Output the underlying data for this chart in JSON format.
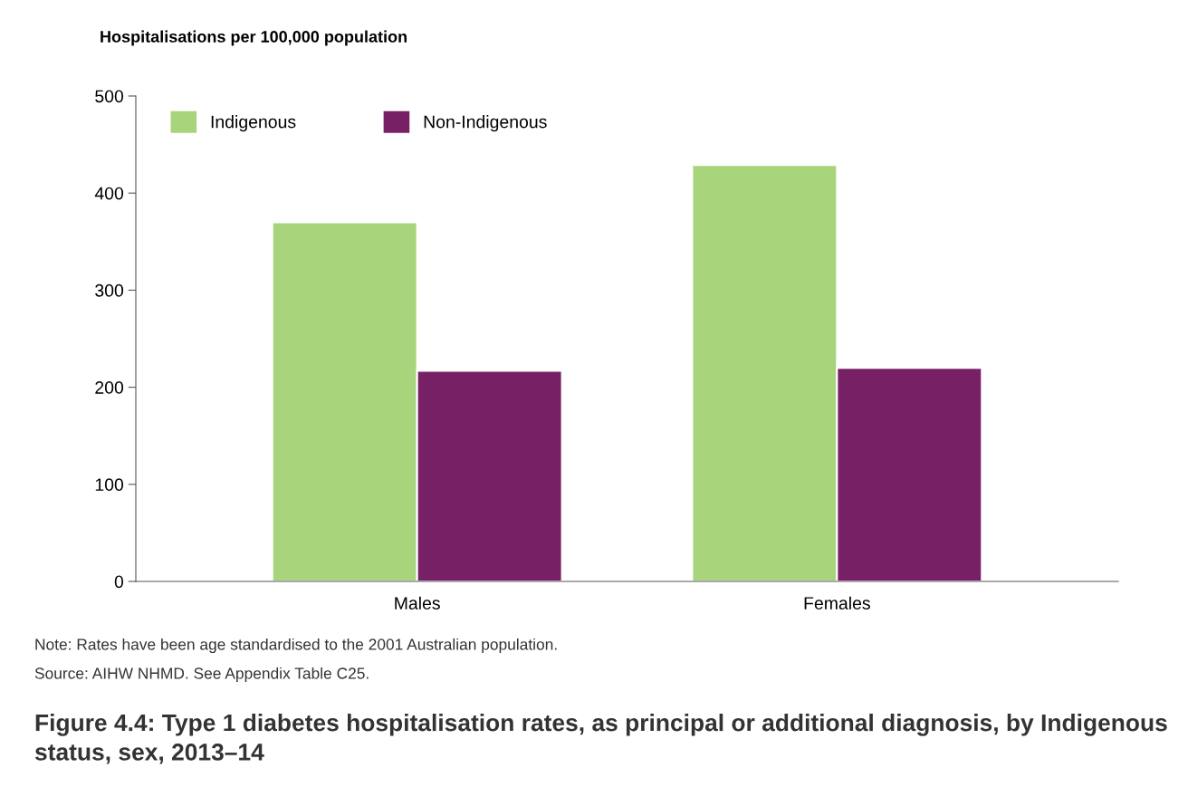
{
  "chart_data": {
    "type": "bar",
    "title": "Figure 4.4: Type 1 diabetes hospitalisation rates, as principal or additional diagnosis, by Indigenous status, sex, 2013–14",
    "ylabel": "Hospitalisations per 100,000 population",
    "categories": [
      "Males",
      "Females"
    ],
    "series": [
      {
        "name": "Indigenous",
        "color": "#a8d47c",
        "values": [
          370,
          429
        ]
      },
      {
        "name": "Non-Indigenous",
        "color": "#772065",
        "values": [
          217,
          220
        ]
      }
    ],
    "ylim": [
      0,
      500
    ],
    "yticks": [
      0,
      100,
      200,
      300,
      400,
      500
    ],
    "grid": false,
    "legend": "top left",
    "annotations": [
      "Note: Rates have been age standardised to the 2001 Australian population.",
      "Source: AIHW NHMD. See Appendix Table C25."
    ]
  }
}
